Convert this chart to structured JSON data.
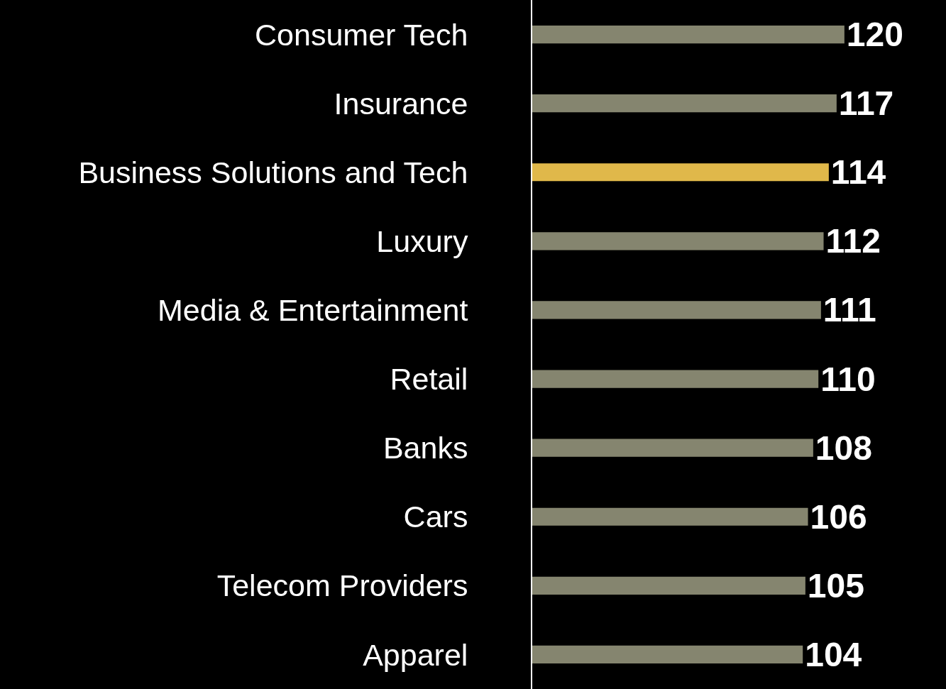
{
  "chart_data": {
    "type": "bar",
    "orientation": "horizontal",
    "categories": [
      "Consumer Tech",
      "Insurance",
      "Business Solutions and Tech",
      "Luxury",
      "Media & Entertainment",
      "Retail",
      "Banks",
      "Cars",
      "Telecom Providers",
      "Apparel"
    ],
    "values": [
      120,
      117,
      114,
      112,
      111,
      110,
      108,
      106,
      105,
      104
    ],
    "colors": [
      "#85856f",
      "#85856f",
      "#e0b84a",
      "#85856f",
      "#85856f",
      "#85856f",
      "#85856f",
      "#85856f",
      "#85856f",
      "#85856f"
    ],
    "data_labels": true,
    "grid": false,
    "legend": false,
    "tick_labels": "y"
  }
}
